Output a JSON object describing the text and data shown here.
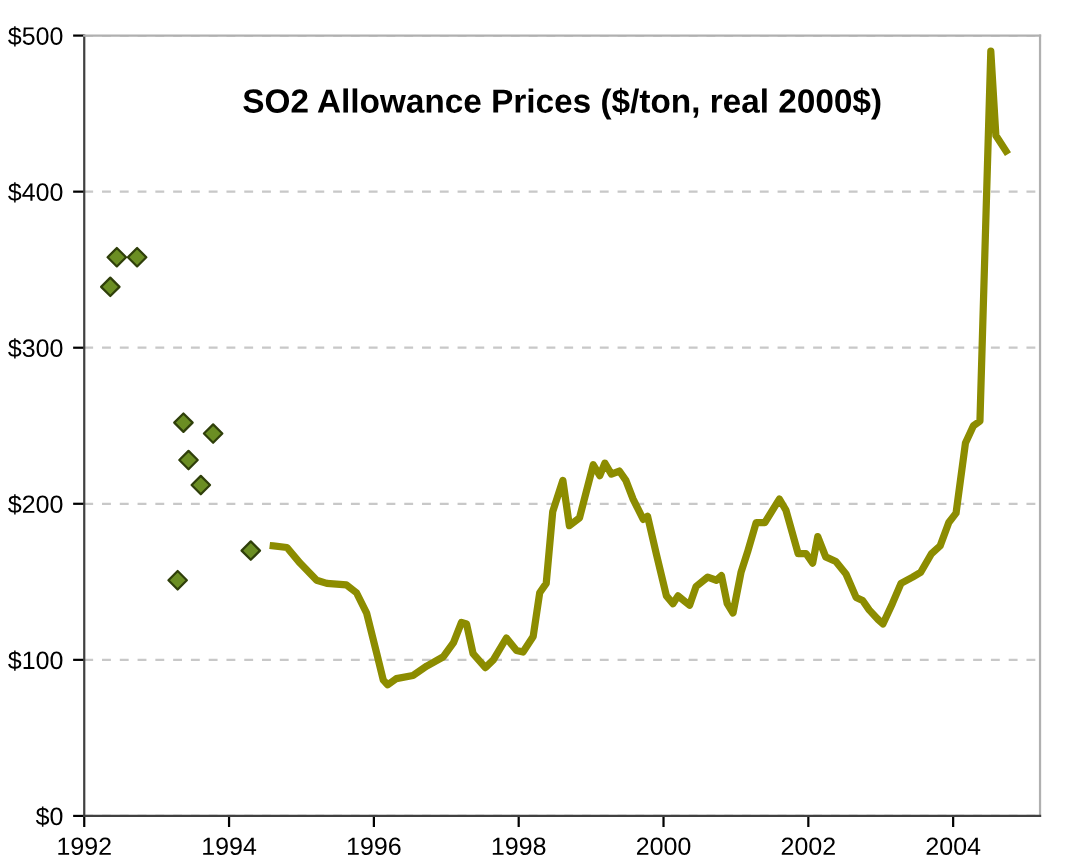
{
  "chart_data": {
    "type": "line",
    "title": "SO2 Allowance Prices ($/ton, real 2000$)",
    "xlim": [
      1992,
      2005.2
    ],
    "xticks": [
      1992,
      1994,
      1996,
      1998,
      2000,
      2002,
      2004
    ],
    "ylim": [
      0,
      500
    ],
    "yticks": [
      {
        "value": 0,
        "label": "$0"
      },
      {
        "value": 100,
        "label": "$100"
      },
      {
        "value": 200,
        "label": "$200"
      },
      {
        "value": 300,
        "label": "$300"
      },
      {
        "value": 400,
        "label": "$400"
      },
      {
        "value": 500,
        "label": "$500"
      }
    ],
    "grid": "y",
    "series": [
      {
        "type": "scatter",
        "marker": "diamond",
        "color": "#6b8e23",
        "x": [
          1992.36,
          1992.45,
          1992.73,
          1993.29,
          1993.37,
          1993.44,
          1993.61,
          1993.78,
          1994.3
        ],
        "values": [
          339,
          358,
          358,
          151,
          252,
          228,
          212,
          245,
          170
        ]
      },
      {
        "marker": "none",
        "line_style": "solid",
        "color": "#8c8c00",
        "x": [
          1994.61,
          1994.8,
          1994.98,
          1995.21,
          1995.35,
          1995.62,
          1995.76,
          1995.9,
          1996.04,
          1996.13,
          1996.19,
          1996.31,
          1996.54,
          1996.73,
          1996.96,
          1997.1,
          1997.21,
          1997.28,
          1997.37,
          1997.54,
          1997.65,
          1997.83,
          1997.97,
          1998.06,
          1998.2,
          1998.29,
          1998.38,
          1998.47,
          1998.61,
          1998.7,
          1998.84,
          1999.03,
          1999.12,
          1999.19,
          1999.28,
          1999.39,
          1999.48,
          1999.58,
          1999.72,
          1999.78,
          1999.9,
          2000.04,
          2000.13,
          2000.2,
          2000.36,
          2000.45,
          2000.61,
          2000.73,
          2000.8,
          2000.88,
          2000.96,
          2001.07,
          2001.16,
          2001.28,
          2001.4,
          2001.6,
          2001.69,
          2001.86,
          2001.97,
          2002.06,
          2002.13,
          2002.24,
          2002.38,
          2002.52,
          2002.66,
          2002.75,
          2002.84,
          2002.96,
          2003.03,
          2003.16,
          2003.28,
          2003.44,
          2003.55,
          2003.7,
          2003.82,
          2003.94,
          2004.04,
          2004.17,
          2004.28,
          2004.37,
          2004.52,
          2004.59,
          2004.73
        ],
        "values": [
          173,
          172,
          162,
          151,
          149,
          148,
          143,
          130,
          104,
          87,
          84,
          88,
          90,
          96,
          102,
          111,
          124,
          123,
          104,
          95,
          100,
          114,
          106,
          105,
          115,
          143,
          149,
          195,
          215,
          186,
          191,
          225,
          218,
          226,
          219,
          221,
          215,
          203,
          190,
          192,
          168,
          141,
          136,
          141,
          135,
          147,
          153,
          151,
          154,
          136,
          130,
          156,
          169,
          188,
          188,
          203,
          196,
          168,
          168,
          162,
          179,
          166,
          163,
          155,
          140,
          138,
          132,
          126,
          123,
          136,
          149,
          153,
          156,
          168,
          173,
          188,
          194,
          239,
          250,
          253,
          490,
          436,
          426
        ]
      }
    ]
  }
}
